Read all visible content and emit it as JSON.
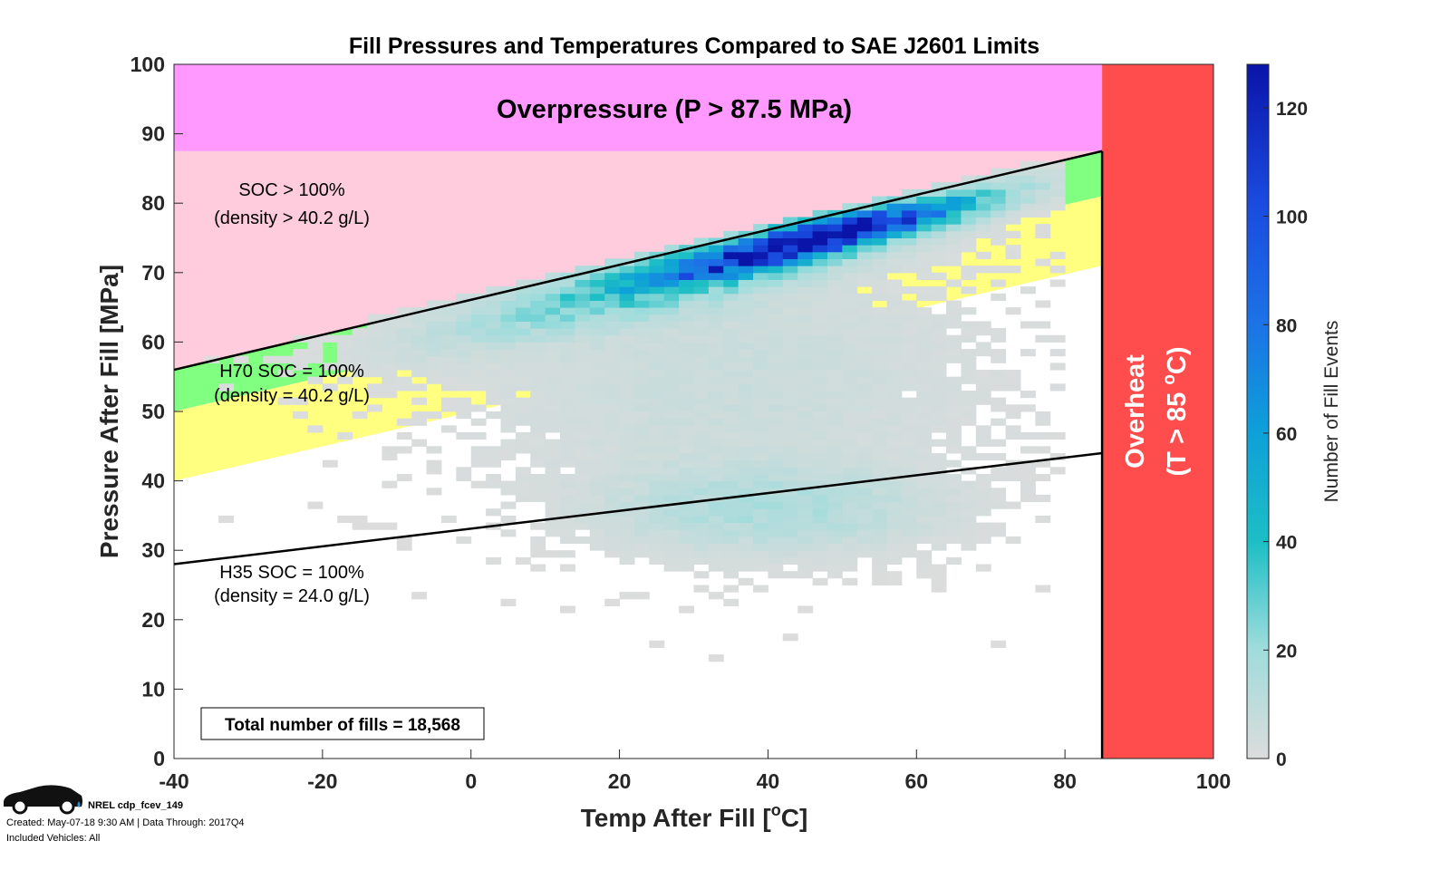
{
  "chart_data": {
    "type": "heatmap",
    "title": "Fill Pressures and Temperatures Compared to SAE J2601 Limits",
    "xlabel": "Temp After Fill [°C]",
    "xlabel_main": "Temp After Fill [",
    "xlabel_sup": "o",
    "xlabel_end": "C]",
    "ylabel": "Pressure After Fill [MPa]",
    "xlim": [
      -40,
      100
    ],
    "ylim": [
      0,
      100
    ],
    "xticks": [
      "-40",
      "-20",
      "0",
      "20",
      "40",
      "60",
      "80",
      "100"
    ],
    "yticks": [
      "0",
      "10",
      "20",
      "30",
      "40",
      "50",
      "60",
      "70",
      "80",
      "90",
      "100"
    ],
    "colorbar": {
      "label": "Number of Fill Events",
      "range": [
        0,
        128
      ],
      "ticks": [
        "0",
        "20",
        "40",
        "60",
        "80",
        "100",
        "120"
      ]
    },
    "regions": {
      "overpressure": {
        "label": "Overpressure (P > 87.5 MPa)",
        "p_min": 87.5,
        "color": "#ff99ff"
      },
      "overheat": {
        "label1": "Overheat",
        "label2": "(T > 85 °C)",
        "t_min": 85,
        "color": "#ff4d4d"
      },
      "soc_over": {
        "label1": "SOC > 100%",
        "label2": "(density > 40.2 g/L)",
        "color": "#ffccdd"
      },
      "green_band": {
        "color": "#80ff80",
        "lower": [
          [
            -40,
            50
          ],
          [
            85,
            81
          ]
        ]
      },
      "yellow_band": {
        "color": "#ffff80",
        "lower": [
          [
            -40,
            40
          ],
          [
            85,
            71
          ]
        ]
      }
    },
    "lines": [
      {
        "label1": "H70 SOC = 100%",
        "label2": "(density = 40.2 g/L)",
        "points": [
          [
            -40,
            56
          ],
          [
            85,
            87.5
          ]
        ]
      },
      {
        "label1": "H35 SOC = 100%",
        "label2": "(density = 24.0 g/L)",
        "points": [
          [
            -40,
            28
          ],
          [
            85,
            44
          ]
        ]
      }
    ],
    "density_clusters": [
      {
        "temp": 47,
        "pressure": 75,
        "peak": 128,
        "sd_temp": 13,
        "sd_pressure": 1.6
      },
      {
        "temp": 30,
        "pressure": 70,
        "peak": 35,
        "sd_temp": 20,
        "sd_pressure": 3
      },
      {
        "temp": 35,
        "pressure": 55,
        "peak": 6,
        "sd_temp": 22,
        "sd_pressure": 12
      },
      {
        "temp": 40,
        "pressure": 36,
        "peak": 14,
        "sd_temp": 14,
        "sd_pressure": 4
      }
    ],
    "annotation": "Total number of fills = 18,568"
  },
  "footer": {
    "id": "NREL cdp_fcev_149",
    "created": "Created: May-07-18  9:30 AM | Data Through: 2017Q4",
    "vehicles": "Included Vehicles: All"
  }
}
